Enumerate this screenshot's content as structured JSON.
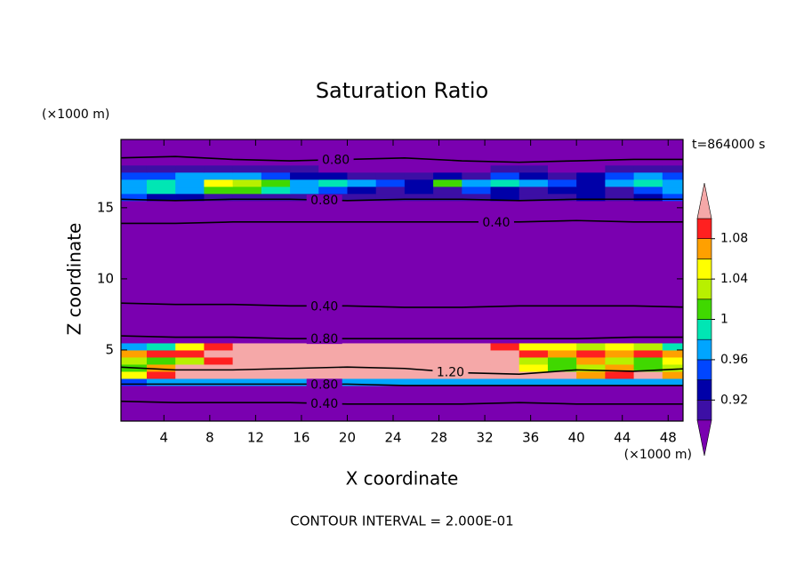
{
  "chart_data": {
    "type": "contour",
    "title": "Saturation Ratio",
    "x_label": "X coordinate",
    "y_label": "Z coordinate",
    "x_unit": "(×1000 m)",
    "y_unit": "(×1000 m)",
    "time_label": "t=864000 s",
    "footer": "CONTOUR INTERVAL = 2.000E-01",
    "xlim": [
      0.25,
      49.3
    ],
    "ylim": [
      0,
      19.8
    ],
    "xticks": [
      4,
      8,
      12,
      16,
      20,
      24,
      28,
      32,
      36,
      40,
      44,
      48
    ],
    "yticks": [
      5,
      10,
      15
    ],
    "x_edges": [
      0,
      2.5,
      5,
      7.5,
      10,
      12.5,
      15,
      17.5,
      20,
      22.5,
      25,
      27.5,
      30,
      32.5,
      35,
      37.5,
      40,
      42.5,
      45,
      47.5,
      50
    ],
    "z_edges": [
      0,
      1,
      2,
      2.5,
      3,
      3.5,
      4,
      4.5,
      5,
      5.5,
      6,
      15,
      15.5,
      16,
      16.5,
      17,
      17.5,
      18,
      19.8
    ],
    "field": [
      [
        0.3,
        0.3,
        0.3,
        0.3,
        0.3,
        0.3,
        0.3,
        0.3,
        0.3,
        0.3,
        0.3,
        0.3,
        0.3,
        0.3,
        0.3,
        0.3,
        0.3,
        0.3,
        0.3,
        0.3
      ],
      [
        0.5,
        0.5,
        0.5,
        0.5,
        0.5,
        0.5,
        0.5,
        0.5,
        0.5,
        0.5,
        0.5,
        0.5,
        0.5,
        0.5,
        0.5,
        0.5,
        0.5,
        0.5,
        0.5,
        0.5
      ],
      [
        0.8,
        0.8,
        0.8,
        0.8,
        0.8,
        0.8,
        0.8,
        0.8,
        0.8,
        0.8,
        0.8,
        0.8,
        0.8,
        0.8,
        0.8,
        0.8,
        0.8,
        0.8,
        0.8,
        0.8
      ],
      [
        0.95,
        0.97,
        0.97,
        0.96,
        0.97,
        0.97,
        0.97,
        0.96,
        0.97,
        0.97,
        0.97,
        0.97,
        0.96,
        0.97,
        0.97,
        0.97,
        0.96,
        0.97,
        0.97,
        0.96
      ],
      [
        1.05,
        1.09,
        1.12,
        1.15,
        1.15,
        1.15,
        1.15,
        1.15,
        1.15,
        1.15,
        1.15,
        1.15,
        1.15,
        1.15,
        1.15,
        1.12,
        1.07,
        1.09,
        1.12,
        1.07
      ],
      [
        1.01,
        1.07,
        1.12,
        1.15,
        1.15,
        1.15,
        1.15,
        1.15,
        1.15,
        1.15,
        1.15,
        1.15,
        1.15,
        1.15,
        1.05,
        1.01,
        1.03,
        1.07,
        1.01,
        1.03
      ],
      [
        1.03,
        1.01,
        1.03,
        1.09,
        1.12,
        1.15,
        1.15,
        1.15,
        1.15,
        1.15,
        1.15,
        1.15,
        1.15,
        1.12,
        1.03,
        1.01,
        1.07,
        1.03,
        1.01,
        1.05
      ],
      [
        1.07,
        1.09,
        1.09,
        1.12,
        1.12,
        1.15,
        1.15,
        1.15,
        1.15,
        1.15,
        1.15,
        1.15,
        1.15,
        1.12,
        1.09,
        1.07,
        1.09,
        1.07,
        1.09,
        1.07
      ],
      [
        0.97,
        0.99,
        1.05,
        1.09,
        1.12,
        1.12,
        1.12,
        1.12,
        1.12,
        1.12,
        1.12,
        1.12,
        1.12,
        1.09,
        1.05,
        1.05,
        1.03,
        1.05,
        1.03,
        0.99
      ],
      [
        0.85,
        0.85,
        0.85,
        0.85,
        0.85,
        0.85,
        0.85,
        0.85,
        0.85,
        0.85,
        0.85,
        0.85,
        0.85,
        0.85,
        0.85,
        0.85,
        0.85,
        0.85,
        0.85,
        0.85
      ],
      [
        0.5,
        0.5,
        0.5,
        0.5,
        0.5,
        0.5,
        0.5,
        0.5,
        0.5,
        0.5,
        0.5,
        0.5,
        0.5,
        0.5,
        0.5,
        0.5,
        0.5,
        0.5,
        0.5,
        0.5
      ],
      [
        0.85,
        0.85,
        0.85,
        0.85,
        0.85,
        0.85,
        0.85,
        0.85,
        0.85,
        0.85,
        0.85,
        0.85,
        0.85,
        0.85,
        0.85,
        0.85,
        0.85,
        0.85,
        0.85,
        0.85
      ],
      [
        0.95,
        0.93,
        0.93,
        0.91,
        0.91,
        0.91,
        0.91,
        0.91,
        0.91,
        0.91,
        0.91,
        0.91,
        0.91,
        0.93,
        0.91,
        0.91,
        0.93,
        0.91,
        0.93,
        0.95
      ],
      [
        0.97,
        0.99,
        0.97,
        1.01,
        1.01,
        0.99,
        0.97,
        0.95,
        0.93,
        0.91,
        0.93,
        0.91,
        0.95,
        0.93,
        0.91,
        0.93,
        0.93,
        0.91,
        0.95,
        0.97
      ],
      [
        0.97,
        0.99,
        0.97,
        1.05,
        1.03,
        1.01,
        0.97,
        0.99,
        0.97,
        0.95,
        0.93,
        1.01,
        0.97,
        0.99,
        0.97,
        0.95,
        0.93,
        0.97,
        0.99,
        0.97
      ],
      [
        0.95,
        0.95,
        0.97,
        0.97,
        0.97,
        0.95,
        0.93,
        0.93,
        0.91,
        0.91,
        0.91,
        0.93,
        0.91,
        0.95,
        0.93,
        0.91,
        0.93,
        0.95,
        0.97,
        0.95
      ],
      [
        0.91,
        0.91,
        0.91,
        0.91,
        0.91,
        0.91,
        0.91,
        0.85,
        0.85,
        0.85,
        0.85,
        0.85,
        0.85,
        0.91,
        0.91,
        0.85,
        0.85,
        0.91,
        0.91,
        0.91
      ],
      [
        0.6,
        0.6,
        0.6,
        0.6,
        0.6,
        0.6,
        0.6,
        0.6,
        0.6,
        0.6,
        0.6,
        0.6,
        0.6,
        0.6,
        0.6,
        0.6,
        0.6,
        0.6,
        0.6,
        0.6
      ]
    ],
    "levels": [
      0.9,
      0.92,
      0.94,
      0.96,
      0.98,
      1,
      1.02,
      1.04,
      1.06,
      1.08,
      1.1
    ],
    "colors": [
      "#7a00b0",
      "#3c0fa5",
      "#0000a8",
      "#0046ff",
      "#00a5ff",
      "#00e6b4",
      "#40d800",
      "#b8f000",
      "#ffff00",
      "#ffa000",
      "#ff2020",
      "#f5a8a8"
    ],
    "cbar_ticks": [
      0.92,
      0.96,
      1,
      1.04,
      1.08
    ],
    "contour_x": [
      0,
      5,
      10,
      15,
      20,
      25,
      30,
      35,
      40,
      45,
      50
    ],
    "contours": [
      {
        "level": {
          "value": 0.8,
          "label": "0.80"
        },
        "values": [
          18.5,
          18.6,
          18.4,
          18.3,
          18.4,
          18.5,
          18.3,
          18.2,
          18.3,
          18.4,
          18.4
        ]
      },
      {
        "level": {
          "value": 0.8,
          "label": "0.80"
        },
        "values": [
          15.6,
          15.5,
          15.6,
          15.6,
          15.5,
          15.6,
          15.6,
          15.5,
          15.6,
          15.6,
          15.6
        ]
      },
      {
        "level": {
          "value": 0.4,
          "label": "0.40"
        },
        "values": [
          13.9,
          13.9,
          14.0,
          14.0,
          14.0,
          14.0,
          14.0,
          14.0,
          14.1,
          14.0,
          14.0
        ]
      },
      {
        "level": {
          "value": 0.4,
          "label": "0.40"
        },
        "values": [
          8.3,
          8.2,
          8.2,
          8.1,
          8.1,
          8.0,
          8.0,
          8.1,
          8.1,
          8.1,
          8.0
        ]
      },
      {
        "level": {
          "value": 0.8,
          "label": "0.80"
        },
        "values": [
          6.0,
          5.9,
          5.9,
          5.8,
          5.8,
          5.8,
          5.8,
          5.8,
          5.8,
          5.9,
          5.9
        ]
      },
      {
        "level": {
          "value": 1.2,
          "label": "1.20"
        },
        "values": [
          3.8,
          3.6,
          3.6,
          3.7,
          3.8,
          3.7,
          3.4,
          3.3,
          3.6,
          3.5,
          3.7
        ]
      },
      {
        "level": {
          "value": 0.8,
          "label": "0.80"
        },
        "values": [
          2.6,
          2.6,
          2.6,
          2.6,
          2.6,
          2.5,
          2.5,
          2.5,
          2.5,
          2.5,
          2.5
        ]
      },
      {
        "level": {
          "value": 0.4,
          "label": "0.40"
        },
        "values": [
          1.4,
          1.3,
          1.3,
          1.3,
          1.2,
          1.2,
          1.2,
          1.3,
          1.2,
          1.2,
          1.2
        ]
      }
    ]
  }
}
